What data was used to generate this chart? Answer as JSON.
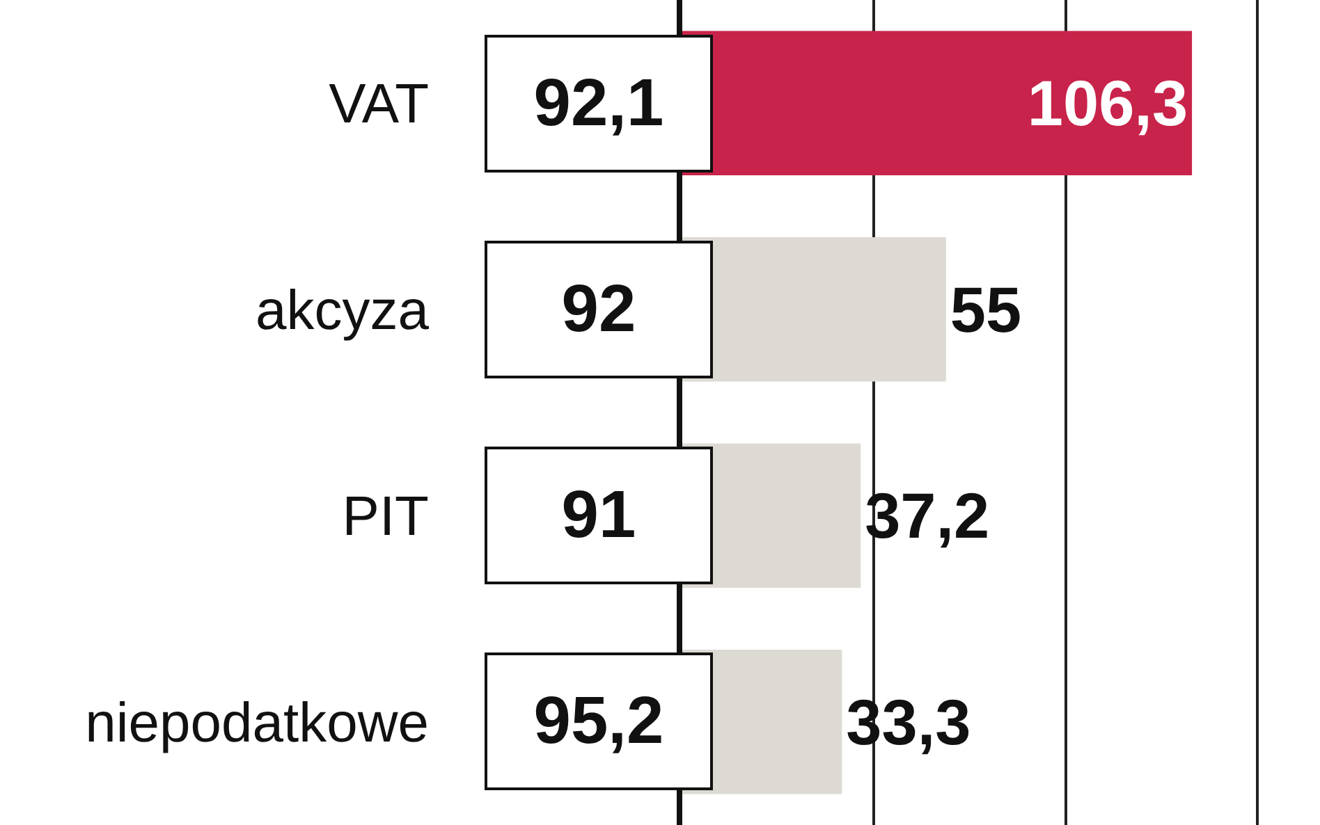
{
  "chart_data": {
    "type": "bar",
    "orientation": "horizontal",
    "categories": [
      "VAT",
      "akcyza",
      "PIT",
      "niepodatkowe"
    ],
    "values": [
      106.3,
      55,
      37.2,
      33.3
    ],
    "value_labels": [
      "106,3",
      "55",
      "37,2",
      "33,3"
    ],
    "colors": [
      "#c8234a",
      "#dcdad3",
      "#dcdad3",
      "#dcdad3"
    ],
    "xlim": [
      0,
      133
    ],
    "xticks": [
      {
        "value": 40,
        "label": null
      },
      {
        "value": 80,
        "label": null
      },
      {
        "value": 120,
        "label": null
      }
    ],
    "grid": "x",
    "tick_labels": "y",
    "legend": false,
    "annotations": [
      "92,1",
      "92",
      "91",
      "95,2"
    ]
  }
}
